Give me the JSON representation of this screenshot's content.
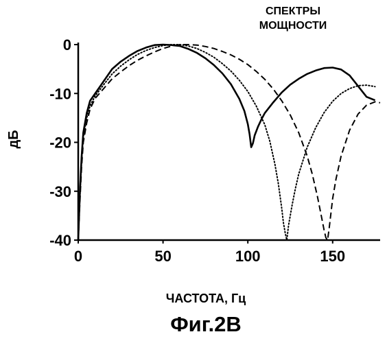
{
  "figure": {
    "caption": "Фиг.2В"
  },
  "chart_data": {
    "type": "line",
    "title": [
      "СПЕКТРЫ",
      "МОЩНОСТИ"
    ],
    "xlabel": "ЧАСТОТА, Гц",
    "ylabel": "дБ",
    "xlim": [
      0,
      178
    ],
    "ylim": [
      -40,
      0
    ],
    "x_ticks": [
      0,
      50,
      100,
      150
    ],
    "x_tick_labels": [
      "0",
      "50",
      "100",
      "150"
    ],
    "y_ticks": [
      0,
      -10,
      -20,
      -30,
      -40
    ],
    "y_tick_labels": [
      "0",
      "-10",
      "-20",
      "-30",
      "-40"
    ],
    "grid": false,
    "legend": "none",
    "series": [
      {
        "style": "solid",
        "x": [
          0,
          1,
          2,
          3,
          5,
          7,
          10,
          15,
          20,
          25,
          30,
          35,
          40,
          45,
          50,
          55,
          60,
          65,
          70,
          75,
          80,
          85,
          90,
          95,
          98,
          100,
          101,
          102,
          103,
          104,
          106,
          108,
          110,
          115,
          120,
          125,
          130,
          135,
          140,
          145,
          150,
          155,
          160,
          165,
          170,
          175
        ],
        "y": [
          -40,
          -30,
          -23,
          -18,
          -14,
          -11.5,
          -10,
          -7.5,
          -5,
          -3.5,
          -2.3,
          -1.3,
          -0.6,
          -0.1,
          0,
          -0.1,
          -0.3,
          -0.9,
          -1.7,
          -2.8,
          -4.2,
          -5.9,
          -8.1,
          -11.1,
          -13.6,
          -16.3,
          -18.3,
          -21,
          -20.2,
          -18.6,
          -16.8,
          -15.3,
          -14,
          -11.8,
          -9.8,
          -8.2,
          -7,
          -6,
          -5.3,
          -4.8,
          -4.7,
          -5.1,
          -6.3,
          -8.5,
          -10.7,
          -11.4
        ]
      },
      {
        "style": "dotted",
        "x": [
          0,
          1,
          2,
          3,
          5,
          7,
          10,
          15,
          20,
          25,
          30,
          35,
          40,
          45,
          50,
          55,
          60,
          65,
          70,
          75,
          80,
          85,
          90,
          95,
          100,
          105,
          110,
          113,
          116,
          118,
          120,
          121,
          122,
          123,
          124,
          126,
          128,
          130,
          135,
          140,
          145,
          150,
          155,
          160,
          165,
          170,
          175
        ],
        "y": [
          -40,
          -31,
          -24,
          -19,
          -15,
          -12.5,
          -10.5,
          -8.2,
          -6,
          -4.4,
          -3.1,
          -2,
          -1.2,
          -0.6,
          -0.2,
          0,
          0,
          -0.3,
          -0.8,
          -1.6,
          -2.6,
          -3.9,
          -5.4,
          -7.3,
          -9.6,
          -12.6,
          -16.4,
          -19.8,
          -24.5,
          -28.5,
          -33.5,
          -36.5,
          -38.5,
          -40,
          -37,
          -33,
          -29.5,
          -26.5,
          -21,
          -17,
          -13.9,
          -11.6,
          -10,
          -9,
          -8.4,
          -8.3,
          -8.6
        ]
      },
      {
        "style": "dashed",
        "x": [
          0,
          1,
          2,
          3,
          5,
          7,
          10,
          15,
          20,
          25,
          30,
          35,
          40,
          45,
          50,
          55,
          60,
          65,
          70,
          75,
          80,
          85,
          90,
          95,
          100,
          105,
          110,
          115,
          120,
          125,
          130,
          135,
          138,
          141,
          143,
          145,
          146,
          147,
          148,
          149,
          150,
          152,
          155,
          160,
          165,
          170,
          175,
          178
        ],
        "y": [
          -40,
          -32,
          -25,
          -20,
          -16,
          -13.2,
          -11,
          -9,
          -7,
          -5.6,
          -4.3,
          -3.2,
          -2.3,
          -1.5,
          -0.8,
          -0.3,
          0,
          0,
          -0.1,
          -0.4,
          -0.8,
          -1.4,
          -2.1,
          -3,
          -4.1,
          -5.5,
          -7.1,
          -9.1,
          -11.5,
          -14.4,
          -18,
          -22.8,
          -26.5,
          -31,
          -34.5,
          -38,
          -39.5,
          -40,
          -37.5,
          -34.5,
          -31.5,
          -27.5,
          -22.8,
          -17.5,
          -14.2,
          -12.4,
          -11.7,
          -11.9
        ]
      }
    ]
  }
}
